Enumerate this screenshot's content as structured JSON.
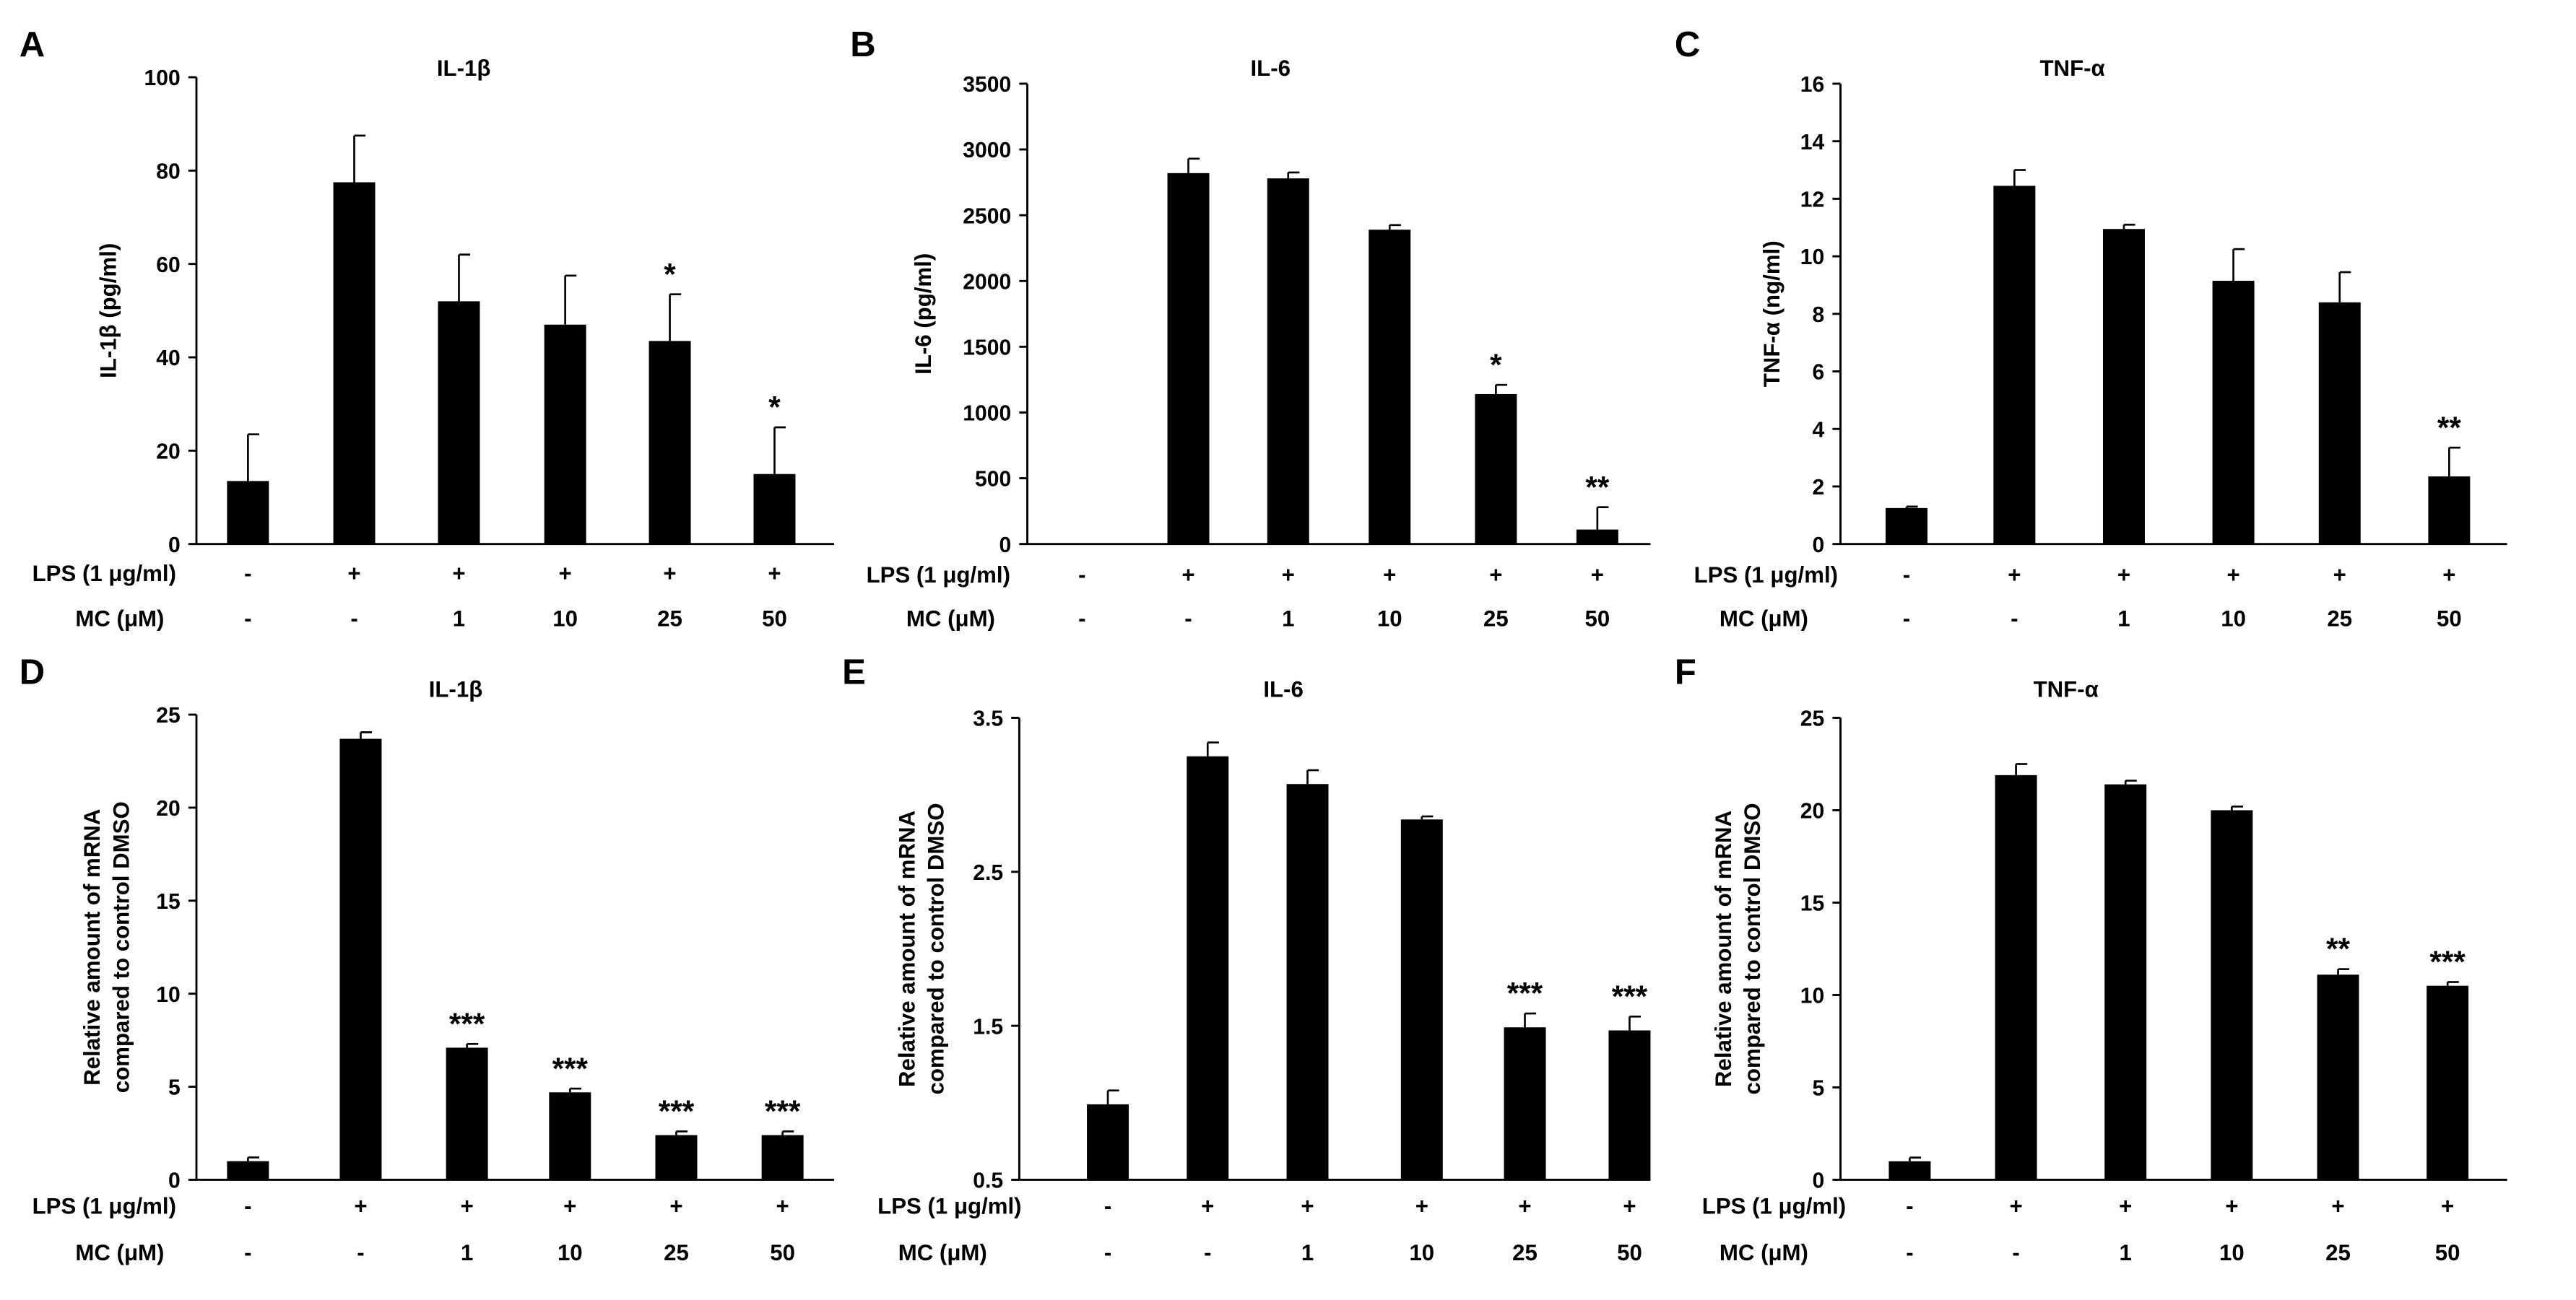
{
  "chart_data": [
    {
      "panel": "A",
      "type": "bar",
      "title": "IL-1β",
      "ylabel": "IL-1β (pg/ml)",
      "ylim": [
        0,
        100
      ],
      "yticks": [
        "0",
        "20",
        "40",
        "60",
        "80",
        "100"
      ],
      "rows": [
        {
          "label": "LPS (1 μg/ml)",
          "values": [
            "-",
            "+",
            "+",
            "+",
            "+",
            "+"
          ]
        },
        {
          "label": "MC (μM)",
          "values": [
            "-",
            "-",
            "1",
            "10",
            "25",
            "50"
          ]
        }
      ],
      "values": [
        13.5,
        77.5,
        52,
        47,
        43.5,
        15
      ],
      "errors": [
        10,
        10,
        10,
        10.5,
        10,
        10
      ],
      "significance": [
        "",
        "",
        "",
        "",
        "*",
        "*"
      ]
    },
    {
      "panel": "B",
      "type": "bar",
      "title": "IL-6",
      "ylabel": "IL-6 (pg/ml)",
      "ylim": [
        0,
        3500
      ],
      "yticks": [
        "0",
        "500",
        "1000",
        "1500",
        "2000",
        "2500",
        "3000",
        "3500"
      ],
      "rows": [
        {
          "label": "LPS (1 μg/ml)",
          "values": [
            "-",
            "+",
            "+",
            "+",
            "+",
            "+"
          ]
        },
        {
          "label": "MC (μM)",
          "values": [
            "-",
            "-",
            "1",
            "10",
            "25",
            "50"
          ]
        }
      ],
      "values": [
        5,
        2820,
        2780,
        2390,
        1140,
        110
      ],
      "errors": [
        0,
        110,
        45,
        35,
        70,
        170
      ],
      "significance": [
        "",
        "",
        "",
        "",
        "*",
        "**"
      ]
    },
    {
      "panel": "C",
      "type": "bar",
      "title": "TNF-α",
      "ylabel": "TNF-α (ng/ml)",
      "ylim": [
        0,
        16
      ],
      "yticks": [
        "0",
        "2",
        "4",
        "6",
        "8",
        "10",
        "12",
        "14",
        "16"
      ],
      "rows": [
        {
          "label": "LPS (1 μg/ml)",
          "values": [
            "-",
            "+",
            "+",
            "+",
            "+",
            "+"
          ]
        },
        {
          "label": "MC (μM)",
          "values": [
            "-",
            "-",
            "1",
            "10",
            "25",
            "50"
          ]
        }
      ],
      "values": [
        1.25,
        12.45,
        10.95,
        9.15,
        8.4,
        2.35
      ],
      "errors": [
        0.05,
        0.55,
        0.15,
        1.1,
        1.05,
        1.0
      ],
      "significance": [
        "",
        "",
        "",
        "",
        "",
        "**"
      ]
    },
    {
      "panel": "D",
      "type": "bar",
      "title": "IL-1β",
      "ylabel": "Relative amount of mRNA|compared to control DMSO",
      "ylim": [
        0,
        25
      ],
      "yticks": [
        "0",
        "5",
        "10",
        "15",
        "20",
        "25"
      ],
      "rows": [
        {
          "label": "LPS (1 μg/ml)",
          "values": [
            "-",
            "+",
            "+",
            "+",
            "+",
            "+"
          ]
        },
        {
          "label": "MC (μM)",
          "values": [
            "-",
            "-",
            "1",
            "10",
            "25",
            "50"
          ]
        }
      ],
      "values": [
        1.0,
        23.7,
        7.1,
        4.7,
        2.4,
        2.4
      ],
      "errors": [
        0.2,
        0.35,
        0.2,
        0.2,
        0.2,
        0.2
      ],
      "significance": [
        "",
        "",
        "***",
        "***",
        "***",
        "***"
      ]
    },
    {
      "panel": "E",
      "type": "bar",
      "title": "IL-6",
      "ylabel": "Relative amount of mRNA|compared to control DMSO",
      "ylim": [
        0.5,
        3.5
      ],
      "yticks": [
        "0.5",
        "1.5",
        "2.5",
        "3.5"
      ],
      "rows": [
        {
          "label": "LPS (1 μg/ml)",
          "values": [
            "-",
            "+",
            "+",
            "+",
            "+",
            "+"
          ]
        },
        {
          "label": "MC (μM)",
          "values": [
            "-",
            "-",
            "1",
            "10",
            "25",
            "50"
          ]
        }
      ],
      "values": [
        0.99,
        3.25,
        3.07,
        2.84,
        1.49,
        1.47
      ],
      "errors": [
        0.09,
        0.09,
        0.09,
        0.02,
        0.09,
        0.09
      ],
      "significance": [
        "",
        "",
        "",
        "",
        "***",
        "***"
      ]
    },
    {
      "panel": "F",
      "type": "bar",
      "title": "TNF-α",
      "ylabel": "Relative amount of mRNA|compared to control DMSO",
      "ylim": [
        0,
        25
      ],
      "yticks": [
        "0",
        "5",
        "10",
        "15",
        "20",
        "25"
      ],
      "rows": [
        {
          "label": "LPS (1 μg/ml)",
          "values": [
            "-",
            "+",
            "+",
            "+",
            "+",
            "+"
          ]
        },
        {
          "label": "MC (μM)",
          "values": [
            "-",
            "-",
            "1",
            "10",
            "25",
            "50"
          ]
        }
      ],
      "values": [
        1.0,
        21.9,
        21.4,
        20.0,
        11.1,
        10.5
      ],
      "errors": [
        0.2,
        0.6,
        0.2,
        0.2,
        0.3,
        0.2
      ],
      "significance": [
        "",
        "",
        "",
        "",
        "**",
        "***"
      ]
    }
  ]
}
